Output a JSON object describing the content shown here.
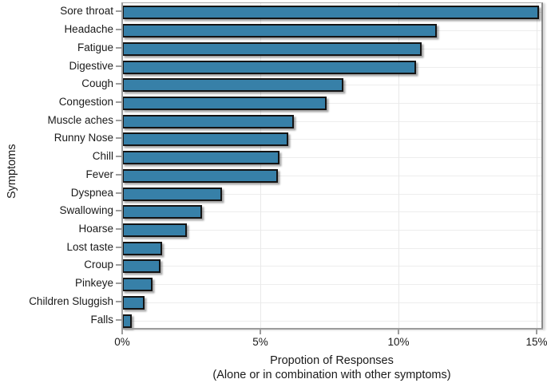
{
  "chart_data": {
    "type": "bar",
    "orientation": "horizontal",
    "title": "",
    "categories": [
      "Sore throat",
      "Headache",
      "Fatigue",
      "Digestive",
      "Cough",
      "Congestion",
      "Muscle aches",
      "Runny Nose",
      "Chill",
      "Fever",
      "Dyspnea",
      "Swallowing",
      "Hoarse",
      "Lost taste",
      "Croup",
      "Pinkeye",
      "Children Sluggish",
      "Falls"
    ],
    "values": [
      15.1,
      11.4,
      10.85,
      10.65,
      8.0,
      7.4,
      6.2,
      6.0,
      5.7,
      5.65,
      3.6,
      2.9,
      2.35,
      1.45,
      1.4,
      1.1,
      0.8,
      0.35
    ],
    "value_unit": "percent",
    "xlabel": "Propotion of Responses",
    "xlabel_sub": "(Alone or in combination with other symptoms)",
    "ylabel": "Symptoms",
    "xticks": [
      {
        "value": 0,
        "label": "0%"
      },
      {
        "value": 5,
        "label": "5%"
      },
      {
        "value": 10,
        "label": "10%"
      },
      {
        "value": 15,
        "label": "15%"
      }
    ],
    "xlim": [
      0,
      15.2
    ],
    "grid": true,
    "legend": "none",
    "colors": {
      "bar_fill": "#3780a8",
      "bar_border": "#141414",
      "gridline": "#ededed",
      "axis_line": "#9c9c9c",
      "panel_border": "#8a8a8a",
      "text": "#1a1a1a",
      "background": "#ffffff"
    }
  }
}
